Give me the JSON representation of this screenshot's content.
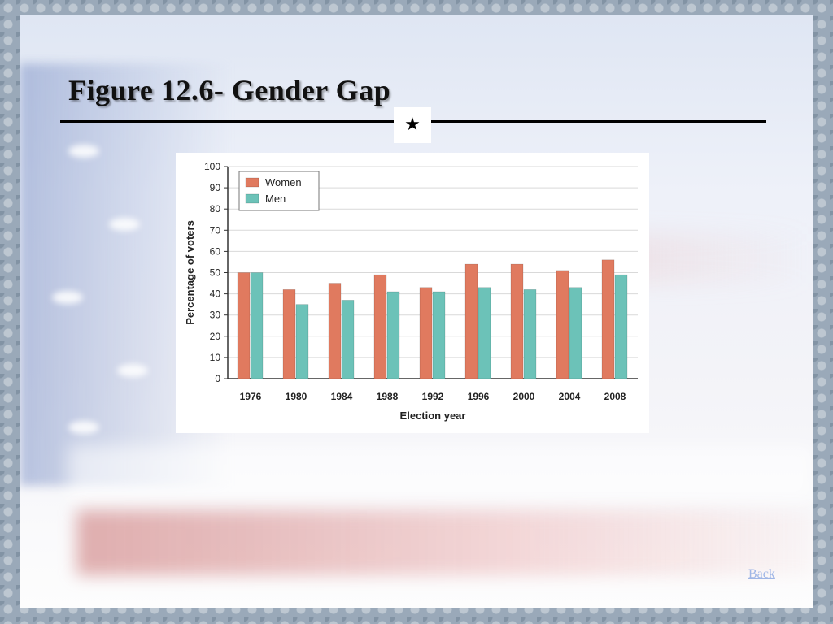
{
  "slide": {
    "title": "Figure 12.6- Gender Gap",
    "star_glyph": "★",
    "back_link": "Back"
  },
  "colors": {
    "women": "#e07a5f",
    "men": "#6cc2b8",
    "grid": "#d9d9d9",
    "axis": "#333333"
  },
  "chart_data": {
    "type": "bar",
    "title": "",
    "xlabel": "Election year",
    "ylabel": "Percentage of voters",
    "ylim": [
      0,
      100
    ],
    "yticks": [
      0,
      10,
      20,
      30,
      40,
      50,
      60,
      70,
      80,
      90,
      100
    ],
    "grid": true,
    "legend_position": "top-left",
    "categories": [
      "1976",
      "1980",
      "1984",
      "1988",
      "1992",
      "1996",
      "2000",
      "2004",
      "2008"
    ],
    "series": [
      {
        "name": "Women",
        "values": [
          50,
          42,
          45,
          49,
          43,
          54,
          54,
          51,
          56
        ]
      },
      {
        "name": "Men",
        "values": [
          50,
          35,
          37,
          41,
          41,
          43,
          42,
          43,
          49
        ]
      }
    ]
  }
}
